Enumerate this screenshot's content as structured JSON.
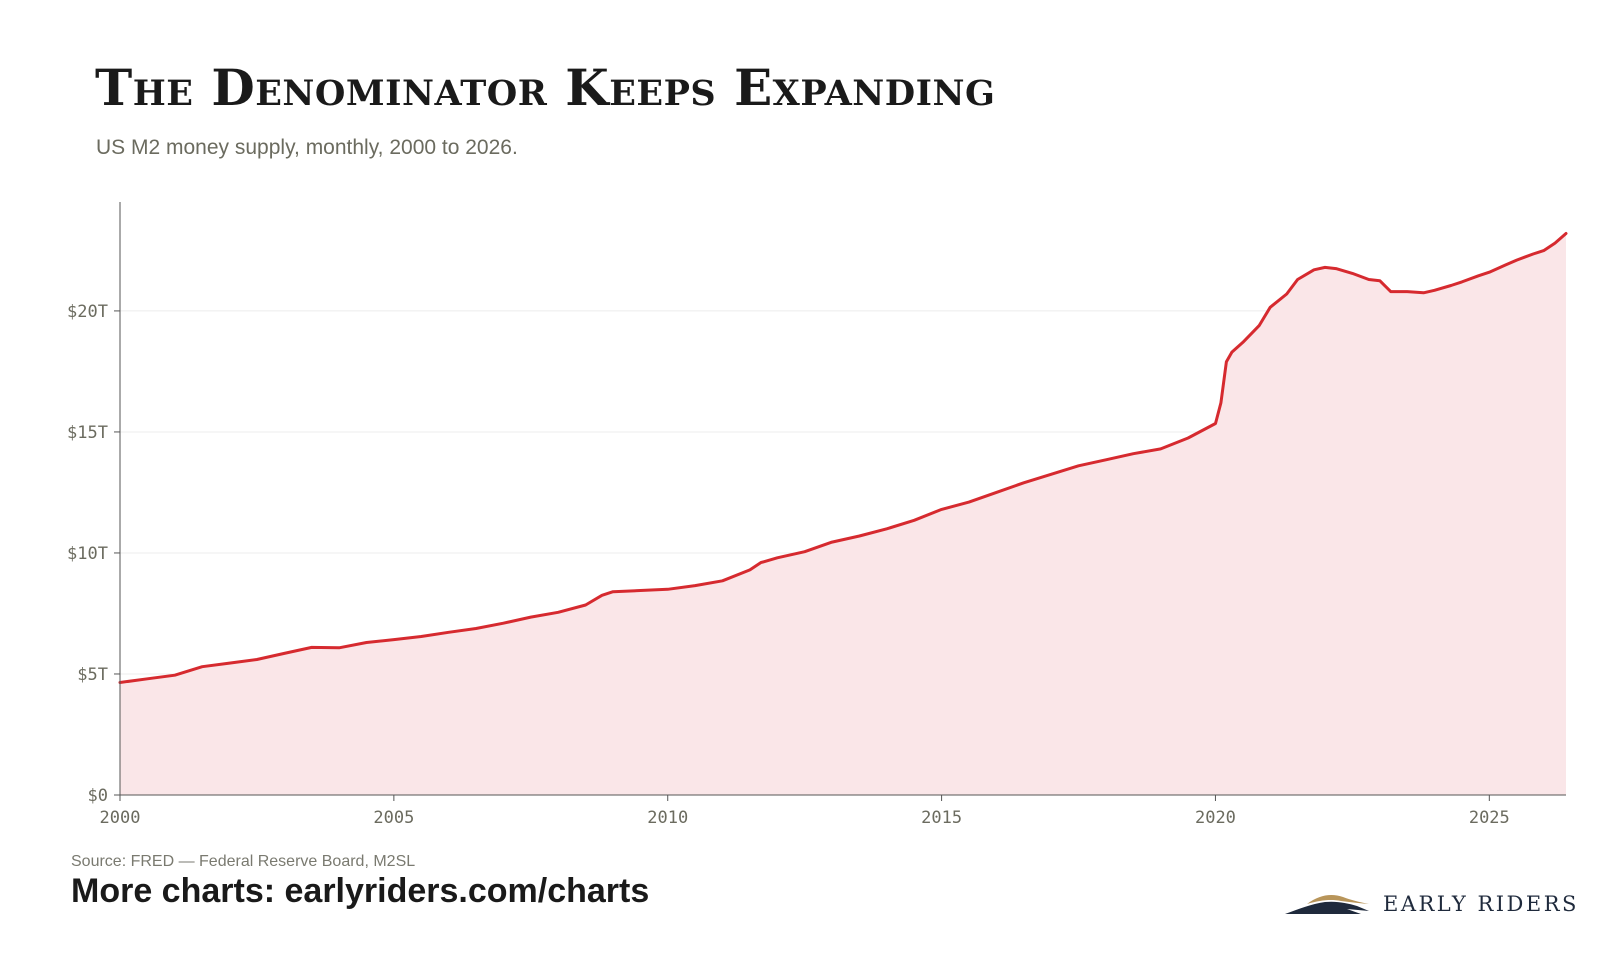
{
  "header": {
    "title": "The Denominator Keeps Expanding",
    "subtitle": "US M2 money supply, monthly, 2000 to 2026."
  },
  "footer": {
    "source": "Source: FRED — Federal Reserve Board, M2SL",
    "more_charts": "More charts: earlyriders.com/charts",
    "logo_text": "EARLY RIDERS"
  },
  "colors": {
    "line": "#d62a2f",
    "area": "#fae6e8",
    "grid": "#ececec",
    "axis": "#555555",
    "tick_text": "#6b6b5f",
    "logo_navy": "#1f2a3c",
    "logo_gold": "#b8955a"
  },
  "chart_data": {
    "type": "area",
    "title": "The Denominator Keeps Expanding",
    "subtitle": "US M2 money supply, monthly, 2000 to 2026.",
    "xlabel": "",
    "ylabel": "",
    "xlim": [
      2000,
      2026.4
    ],
    "ylim": [
      0,
      24.5
    ],
    "x_ticks": [
      2000,
      2005,
      2010,
      2015,
      2020,
      2025
    ],
    "y_ticks": [
      0,
      5,
      10,
      15,
      20
    ],
    "y_tick_labels": [
      "$0",
      "$5T",
      "$10T",
      "$15T",
      "$20T"
    ],
    "grid": "horizontal",
    "legend": "none",
    "series": [
      {
        "x": [
          2000.0,
          2000.5,
          2001.0,
          2001.5,
          2002.0,
          2002.5,
          2003.0,
          2003.5,
          2004.0,
          2004.5,
          2005.0,
          2005.5,
          2006.0,
          2006.5,
          2007.0,
          2007.5,
          2008.0,
          2008.5,
          2008.8,
          2009.0,
          2009.5,
          2010.0,
          2010.5,
          2011.0,
          2011.5,
          2011.7,
          2012.0,
          2012.5,
          2013.0,
          2013.5,
          2014.0,
          2014.5,
          2015.0,
          2015.5,
          2016.0,
          2016.5,
          2017.0,
          2017.5,
          2018.0,
          2018.5,
          2019.0,
          2019.5,
          2020.0,
          2020.1,
          2020.2,
          2020.3,
          2020.5,
          2020.8,
          2021.0,
          2021.3,
          2021.5,
          2021.8,
          2022.0,
          2022.2,
          2022.5,
          2022.8,
          2023.0,
          2023.2,
          2023.3,
          2023.5,
          2023.8,
          2024.0,
          2024.3,
          2024.5,
          2024.8,
          2025.0,
          2025.3,
          2025.5,
          2025.8,
          2026.0,
          2026.2,
          2026.4
        ],
        "values": [
          4.65,
          4.8,
          4.95,
          5.3,
          5.45,
          5.6,
          5.85,
          6.1,
          6.08,
          6.3,
          6.42,
          6.55,
          6.72,
          6.88,
          7.1,
          7.35,
          7.55,
          7.85,
          8.25,
          8.4,
          8.45,
          8.5,
          8.65,
          8.85,
          9.3,
          9.6,
          9.8,
          10.05,
          10.45,
          10.7,
          11.0,
          11.35,
          11.8,
          12.1,
          12.5,
          12.9,
          13.25,
          13.6,
          13.85,
          14.1,
          14.3,
          14.75,
          15.35,
          16.2,
          17.9,
          18.3,
          18.7,
          19.4,
          20.15,
          20.7,
          21.3,
          21.7,
          21.8,
          21.75,
          21.55,
          21.3,
          21.25,
          20.8,
          20.8,
          20.8,
          20.75,
          20.85,
          21.05,
          21.2,
          21.45,
          21.6,
          21.9,
          22.1,
          22.35,
          22.5,
          22.8,
          23.2
        ]
      }
    ]
  }
}
